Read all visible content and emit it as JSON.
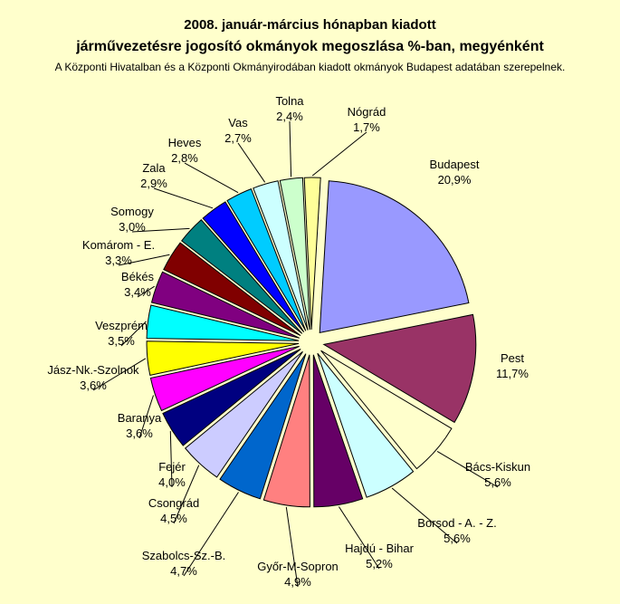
{
  "chart_data": {
    "type": "pie",
    "title_line1": "2008. január-március hónapban kiadott",
    "title_line2": "járművezetésre jogosító okmányok megoszlása %-ban, megyénként",
    "subtitle": "A Központi Hivatalban és a Központi Okmányirodában kiadott okmányok Budapest adatában szerepelnek.",
    "slices": [
      {
        "label": "Budapest",
        "value": 20.9,
        "value_label": "20,9%",
        "color": "#9999ff"
      },
      {
        "label": "Pest",
        "value": 11.7,
        "value_label": "11,7%",
        "color": "#993366"
      },
      {
        "label": "Bács-Kiskun",
        "value": 5.6,
        "value_label": "5,6%",
        "color": "#ffffcc"
      },
      {
        "label": "Borsod - A. - Z.",
        "value": 5.6,
        "value_label": "5,6%",
        "color": "#ccffff"
      },
      {
        "label": "Hajdú - Bihar",
        "value": 5.2,
        "value_label": "5,2%",
        "color": "#660066"
      },
      {
        "label": "Győr-M-Sopron",
        "value": 4.9,
        "value_label": "4,9%",
        "color": "#ff8080"
      },
      {
        "label": "Szabolcs-Sz.-B.",
        "value": 4.7,
        "value_label": "4,7%",
        "color": "#0066cc"
      },
      {
        "label": "Csongrád",
        "value": 4.5,
        "value_label": "4,5%",
        "color": "#ccccff"
      },
      {
        "label": "Fejér",
        "value": 4.0,
        "value_label": "4,0%",
        "color": "#000080"
      },
      {
        "label": "Baranya",
        "value": 3.6,
        "value_label": "3,6%",
        "color": "#ff00ff"
      },
      {
        "label": "Jász-Nk.-Szolnok",
        "value": 3.6,
        "value_label": "3,6%",
        "color": "#ffff00"
      },
      {
        "label": "Veszprém",
        "value": 3.5,
        "value_label": "3,5%",
        "color": "#00ffff"
      },
      {
        "label": "Békés",
        "value": 3.4,
        "value_label": "3,4%",
        "color": "#800080"
      },
      {
        "label": "Komárom - E.",
        "value": 3.3,
        "value_label": "3,3%",
        "color": "#800000"
      },
      {
        "label": "Somogy",
        "value": 3.0,
        "value_label": "3,0%",
        "color": "#008080"
      },
      {
        "label": "Zala",
        "value": 2.9,
        "value_label": "2,9%",
        "color": "#0000ff"
      },
      {
        "label": "Heves",
        "value": 2.8,
        "value_label": "2,8%",
        "color": "#00ccff"
      },
      {
        "label": "Vas",
        "value": 2.7,
        "value_label": "2,7%",
        "color": "#ccffff"
      },
      {
        "label": "Tolna",
        "value": 2.4,
        "value_label": "2,4%",
        "color": "#ccffcc"
      },
      {
        "label": "Nógrád",
        "value": 1.7,
        "value_label": "1,7%",
        "color": "#ffff99"
      }
    ]
  }
}
